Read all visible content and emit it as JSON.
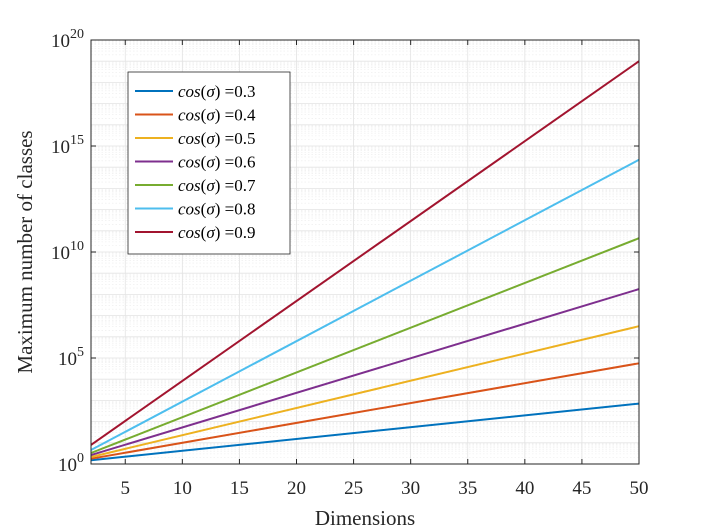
{
  "chart_data": {
    "type": "line",
    "title": "",
    "xlabel": "Dimensions",
    "ylabel": "Maximum number of classes",
    "yscale": "log",
    "xlim": [
      2,
      50
    ],
    "ylim_exponent": [
      0,
      20
    ],
    "x_ticks": [
      5,
      10,
      15,
      20,
      25,
      30,
      35,
      40,
      45,
      50
    ],
    "y_ticks": [
      {
        "base": "10",
        "exp": "0",
        "value": 1
      },
      {
        "base": "10",
        "exp": "5",
        "value": 100000
      },
      {
        "base": "10",
        "exp": "10",
        "value": 10000000000
      },
      {
        "base": "10",
        "exp": "15",
        "value": 1000000000000000.0
      },
      {
        "base": "10",
        "exp": "20",
        "value": 1e+20
      }
    ],
    "grid": true,
    "minor_grid": true,
    "legend_position": "top-left",
    "series": [
      {
        "name_fn": "cos",
        "name_arg": "σ",
        "name_val": " =0.3",
        "color": "#0072BD",
        "x": [
          2,
          50
        ],
        "log10_y": [
          0.18,
          2.85
        ]
      },
      {
        "name_fn": "cos",
        "name_arg": "σ",
        "name_val": " =0.4",
        "color": "#D95319",
        "x": [
          2,
          50
        ],
        "log10_y": [
          0.25,
          4.75
        ]
      },
      {
        "name_fn": "cos",
        "name_arg": "σ",
        "name_val": " =0.5",
        "color": "#EDB120",
        "x": [
          2,
          50
        ],
        "log10_y": [
          0.33,
          6.5
        ]
      },
      {
        "name_fn": "cos",
        "name_arg": "σ",
        "name_val": " =0.6",
        "color": "#7E2F8E",
        "x": [
          2,
          50
        ],
        "log10_y": [
          0.42,
          8.25
        ]
      },
      {
        "name_fn": "cos",
        "name_arg": "σ",
        "name_val": " =0.7",
        "color": "#77AC30",
        "x": [
          2,
          50
        ],
        "log10_y": [
          0.52,
          10.65
        ]
      },
      {
        "name_fn": "cos",
        "name_arg": "σ",
        "name_val": " =0.8",
        "color": "#4DBEEE",
        "x": [
          2,
          50
        ],
        "log10_y": [
          0.66,
          14.35
        ]
      },
      {
        "name_fn": "cos",
        "name_arg": "σ",
        "name_val": " =0.9",
        "color": "#A2142F",
        "x": [
          2,
          50
        ],
        "log10_y": [
          0.9,
          19.0
        ]
      }
    ]
  }
}
